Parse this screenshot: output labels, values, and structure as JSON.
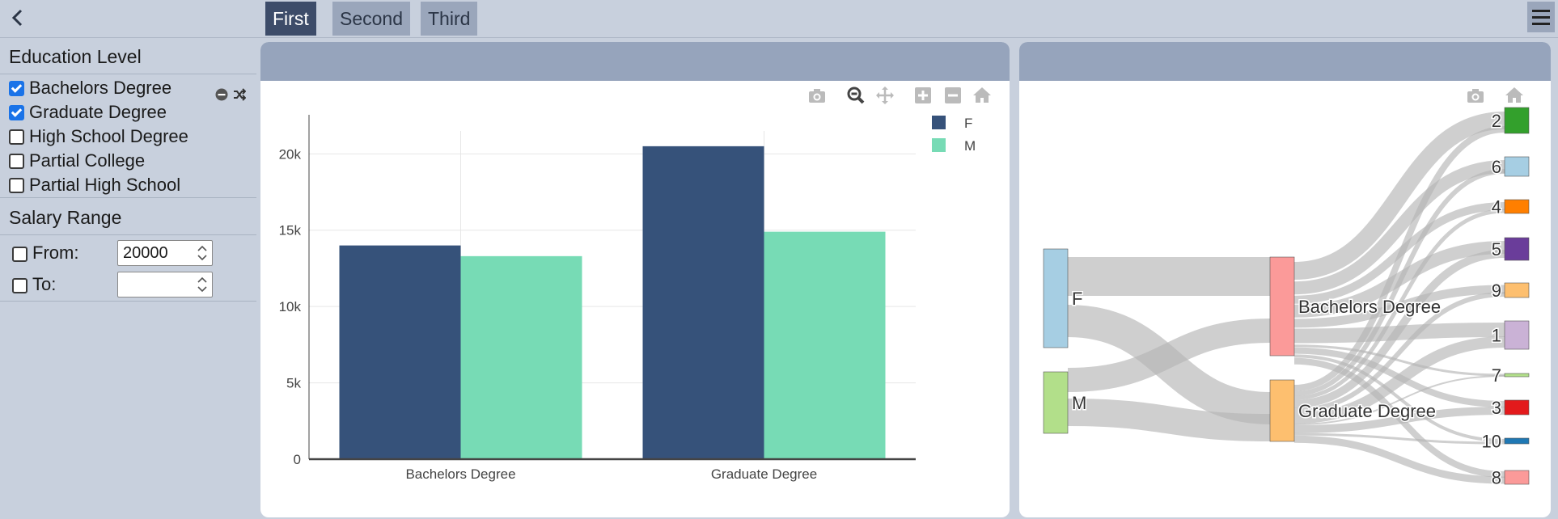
{
  "tabs": [
    {
      "label": "First",
      "active": true
    },
    {
      "label": "Second",
      "active": false
    },
    {
      "label": "Third",
      "active": false
    }
  ],
  "sidebar": {
    "education_title": "Education Level",
    "options": [
      {
        "label": "Bachelors Degree",
        "checked": true
      },
      {
        "label": "Graduate Degree",
        "checked": true
      },
      {
        "label": "High School Degree",
        "checked": false
      },
      {
        "label": "Partial College",
        "checked": false
      },
      {
        "label": "Partial High School",
        "checked": false
      }
    ],
    "salary_title": "Salary Range",
    "from_label": "From:",
    "from_value": "20000",
    "from_checked": false,
    "to_label": "To:",
    "to_value": "",
    "to_checked": false
  },
  "colors": {
    "accent": "#3d4c69",
    "panel_header": "#96a4bc"
  },
  "chart_data": [
    {
      "type": "bar",
      "categories": [
        "Bachelors Degree",
        "Graduate Degree"
      ],
      "series": [
        {
          "name": "F",
          "color": "#36527a",
          "values": [
            14000,
            20500
          ]
        },
        {
          "name": "M",
          "color": "#77dbb5",
          "values": [
            13300,
            14900
          ]
        }
      ],
      "yticks": [
        "0",
        "5k",
        "10k",
        "15k",
        "20k"
      ],
      "ylim": [
        0,
        21500
      ],
      "legend": "top-right",
      "grid": true
    },
    {
      "type": "sankey",
      "nodes": [
        {
          "id": "F",
          "label": "F",
          "color": "#a6cee3"
        },
        {
          "id": "M",
          "label": "M",
          "color": "#b2df8a"
        },
        {
          "id": "BD",
          "label": "Bachelors Degree",
          "color": "#fb9a99"
        },
        {
          "id": "GD",
          "label": "Graduate Degree",
          "color": "#fdbf6f"
        },
        {
          "id": "n2",
          "label": "2",
          "color": "#33a02c"
        },
        {
          "id": "n6",
          "label": "6",
          "color": "#a6cee3"
        },
        {
          "id": "n4",
          "label": "4",
          "color": "#ff7f00"
        },
        {
          "id": "n5",
          "label": "5",
          "color": "#6a3d9a"
        },
        {
          "id": "n9",
          "label": "9",
          "color": "#fdbf6f"
        },
        {
          "id": "n1",
          "label": "1",
          "color": "#cab2d6"
        },
        {
          "id": "n7",
          "label": "7",
          "color": "#b2df8a"
        },
        {
          "id": "n3",
          "label": "3",
          "color": "#e31a1c"
        },
        {
          "id": "n10",
          "label": "10",
          "color": "#1f78b4"
        },
        {
          "id": "n8",
          "label": "8",
          "color": "#fb9a99"
        }
      ]
    }
  ]
}
